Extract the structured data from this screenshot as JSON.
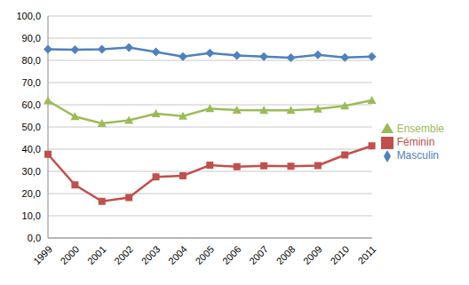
{
  "chart_data": {
    "type": "line",
    "categories": [
      "1999",
      "2000",
      "2001",
      "2002",
      "2003",
      "2004",
      "2005",
      "2006",
      "2007",
      "2008",
      "2009",
      "2010",
      "2011"
    ],
    "series": [
      {
        "name": "Masculin",
        "color": "#4f81bd",
        "marker": "diamond",
        "values": [
          85.0,
          84.8,
          85.0,
          85.8,
          83.8,
          81.7,
          83.3,
          82.2,
          81.7,
          81.2,
          82.5,
          81.3,
          81.7
        ]
      },
      {
        "name": "Féminin",
        "color": "#c0504d",
        "marker": "square",
        "values": [
          37.7,
          23.9,
          16.5,
          18.2,
          27.5,
          28.0,
          32.8,
          32.1,
          32.5,
          32.3,
          32.6,
          37.4,
          41.5
        ]
      },
      {
        "name": "Ensemble",
        "color": "#9bbb59",
        "marker": "triangle",
        "values": [
          61.8,
          54.7,
          51.6,
          53.0,
          56.0,
          54.9,
          58.3,
          57.6,
          57.5,
          57.5,
          58.1,
          59.5,
          62.0
        ]
      }
    ],
    "ylim": [
      0,
      100
    ],
    "yticks": [
      {
        "value": 0,
        "label": "0,0"
      },
      {
        "value": 10,
        "label": "10,0"
      },
      {
        "value": 20,
        "label": "20,0"
      },
      {
        "value": 30,
        "label": "30,0"
      },
      {
        "value": 40,
        "label": "40,0"
      },
      {
        "value": 50,
        "label": "50,0"
      },
      {
        "value": 60,
        "label": "60,0"
      },
      {
        "value": 70,
        "label": "70,0"
      },
      {
        "value": 80,
        "label": "80,0"
      },
      {
        "value": 90,
        "label": "90,0"
      },
      {
        "value": 100,
        "label": "100,0"
      }
    ],
    "grid": true,
    "legend": "right"
  }
}
